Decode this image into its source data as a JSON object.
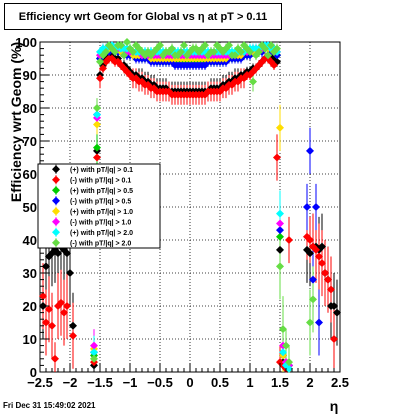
{
  "chart_data": {
    "type": "scatter",
    "title": "Efficiency wrt Geom for Global vs    η  at pT > 0.11",
    "xlabel": "η",
    "ylabel": "Efficiency wrt Geom (%)",
    "xlim": [
      -2.5,
      2.5
    ],
    "ylim": [
      0,
      100
    ],
    "x_tick_labels": [
      "−2.5",
      "−2",
      "−1.5",
      "−1",
      "−0.5",
      "0",
      "0.5",
      "1",
      "1.5",
      "2",
      "2.5"
    ],
    "y_tick_labels": [
      "0",
      "10",
      "20",
      "30",
      "40",
      "50",
      "60",
      "70",
      "80",
      "90",
      "100"
    ],
    "grid": true,
    "legend_position": "left-middle",
    "series": [
      {
        "name": "(+) with pT/|q| > 0.1",
        "color": "#000000",
        "x": [
          -2.45,
          -2.4,
          -2.35,
          -2.3,
          -2.25,
          -2.2,
          -2.15,
          -2.1,
          -2.05,
          -2.0,
          -1.95,
          -1.6,
          -1.55,
          -1.5,
          -1.45,
          -1.4,
          -1.35,
          -1.3,
          -1.25,
          -1.2,
          -1.15,
          -1.1,
          -1.05,
          -1.0,
          -0.95,
          -0.9,
          -0.85,
          -0.8,
          -0.75,
          -0.7,
          -0.65,
          -0.6,
          -0.55,
          -0.5,
          -0.45,
          -0.4,
          -0.35,
          -0.3,
          -0.25,
          -0.2,
          -0.15,
          -0.1,
          -0.05,
          0.0,
          0.05,
          0.1,
          0.15,
          0.2,
          0.25,
          0.3,
          0.35,
          0.4,
          0.45,
          0.5,
          0.55,
          0.6,
          0.65,
          0.7,
          0.75,
          0.8,
          0.85,
          0.9,
          0.95,
          1.0,
          1.05,
          1.1,
          1.15,
          1.2,
          1.25,
          1.3,
          1.35,
          1.4,
          1.45,
          1.5,
          1.55,
          1.6,
          1.65,
          1.95,
          2.0,
          2.05,
          2.1,
          2.15,
          2.2,
          2.25,
          2.3,
          2.35,
          2.4,
          2.45
        ],
        "y": [
          20,
          32,
          35,
          36,
          37,
          36,
          38,
          37,
          36,
          30,
          14,
          2,
          67,
          90,
          93,
          95,
          96,
          96,
          95,
          95,
          93,
          93,
          92,
          91,
          90,
          90,
          89,
          89,
          88,
          88,
          87,
          87,
          86,
          86,
          86,
          86,
          85,
          85,
          85,
          85,
          85,
          85,
          85,
          85,
          85,
          85,
          85,
          85,
          85,
          85,
          86,
          86,
          86,
          86,
          87,
          87,
          88,
          88,
          89,
          89,
          90,
          90,
          91,
          91,
          92,
          92,
          93,
          94,
          95,
          96,
          96,
          95,
          94,
          37,
          3,
          2,
          2,
          37,
          36,
          38,
          38,
          37,
          38,
          30,
          28,
          20,
          20,
          18
        ]
      },
      {
        "name": "(-) with pT/|q| > 0.1",
        "color": "#ff0000",
        "x": [
          -2.45,
          -2.4,
          -2.35,
          -2.3,
          -2.25,
          -2.2,
          -2.15,
          -2.1,
          -2.05,
          -1.95,
          -1.6,
          -1.55,
          -1.5,
          -1.45,
          -1.4,
          -1.35,
          -1.3,
          -1.25,
          -1.2,
          -1.15,
          -1.1,
          -1.05,
          -1.0,
          -0.95,
          -0.9,
          -0.85,
          -0.8,
          -0.75,
          -0.7,
          -0.65,
          -0.6,
          -0.55,
          -0.5,
          -0.45,
          -0.4,
          -0.35,
          -0.3,
          -0.25,
          -0.2,
          -0.15,
          -0.1,
          -0.05,
          0.0,
          0.05,
          0.1,
          0.15,
          0.2,
          0.25,
          0.3,
          0.35,
          0.4,
          0.45,
          0.5,
          0.55,
          0.6,
          0.65,
          0.7,
          0.75,
          0.8,
          0.85,
          0.9,
          0.95,
          1.0,
          1.05,
          1.1,
          1.15,
          1.2,
          1.25,
          1.3,
          1.35,
          1.4,
          1.45,
          1.5,
          1.55,
          1.6,
          1.65,
          1.95,
          2.0,
          2.05,
          2.1,
          2.15,
          2.2,
          2.25,
          2.3,
          2.35,
          2.4
        ],
        "y": [
          23,
          15,
          19,
          14,
          4,
          20,
          21,
          18,
          20,
          11,
          3,
          65,
          89,
          92,
          94,
          95,
          95,
          94,
          94,
          93,
          92,
          91,
          90,
          89,
          89,
          88,
          88,
          87,
          87,
          86,
          86,
          85,
          85,
          85,
          85,
          85,
          84,
          84,
          84,
          84,
          84,
          84,
          84,
          84,
          84,
          84,
          84,
          84,
          85,
          85,
          85,
          85,
          85,
          86,
          86,
          87,
          87,
          88,
          88,
          89,
          89,
          90,
          90,
          91,
          92,
          93,
          94,
          95,
          95,
          94,
          93,
          65,
          3,
          2,
          1,
          40,
          41,
          40,
          38,
          37,
          35,
          33,
          30,
          28,
          25,
          10
        ]
      },
      {
        "name": "(+) with pT/|q| > 0.5",
        "color": "#00cc00",
        "x": [
          -1.6,
          -1.55,
          -1.5,
          -1.45,
          -1.4,
          -1.35,
          -1.3,
          -1.25,
          -1.2,
          -1.15,
          -1.1,
          -1.05,
          -1.0,
          -0.95,
          -0.9,
          -0.85,
          -0.8,
          -0.75,
          -0.7,
          -0.65,
          -0.6,
          -0.55,
          -0.5,
          -0.45,
          -0.4,
          -0.35,
          -0.3,
          -0.25,
          -0.2,
          -0.15,
          -0.1,
          -0.05,
          0.0,
          0.05,
          0.1,
          0.15,
          0.2,
          0.25,
          0.3,
          0.35,
          0.4,
          0.45,
          0.5,
          0.55,
          0.6,
          0.65,
          0.7,
          0.75,
          0.8,
          0.85,
          0.9,
          0.95,
          1.0,
          1.05,
          1.1,
          1.15,
          1.2,
          1.25,
          1.3,
          1.35,
          1.4,
          1.45,
          1.5,
          1.55,
          1.6,
          1.65
        ],
        "y": [
          5,
          68,
          95,
          97,
          97,
          98,
          98,
          98,
          97,
          97,
          97,
          97,
          96,
          96,
          96,
          96,
          95,
          95,
          95,
          95,
          95,
          94,
          94,
          94,
          94,
          94,
          94,
          94,
          94,
          94,
          94,
          94,
          94,
          94,
          94,
          94,
          94,
          94,
          94,
          94,
          94,
          94,
          94,
          94,
          95,
          95,
          95,
          95,
          95,
          96,
          96,
          96,
          97,
          97,
          97,
          97,
          98,
          98,
          98,
          97,
          97,
          96,
          41,
          5,
          3,
          2
        ]
      },
      {
        "name": "(-) with pT/|q| > 0.5",
        "color": "#0000ff",
        "x": [
          -1.6,
          -1.55,
          -1.5,
          -1.45,
          -1.4,
          -1.35,
          -1.3,
          -1.25,
          -1.2,
          -1.15,
          -1.1,
          -1.05,
          -1.0,
          -0.95,
          -0.9,
          -0.85,
          -0.8,
          -0.75,
          -0.7,
          -0.65,
          -0.6,
          -0.55,
          -0.5,
          -0.45,
          -0.4,
          -0.35,
          -0.3,
          -0.25,
          -0.2,
          -0.15,
          -0.1,
          -0.05,
          0.0,
          0.05,
          0.1,
          0.15,
          0.2,
          0.25,
          0.3,
          0.35,
          0.4,
          0.45,
          0.5,
          0.55,
          0.6,
          0.65,
          0.7,
          0.75,
          0.8,
          0.85,
          0.9,
          0.95,
          1.0,
          1.05,
          1.1,
          1.15,
          1.2,
          1.25,
          1.3,
          1.35,
          1.4,
          1.45,
          1.5,
          1.55,
          1.6,
          1.65,
          1.95,
          2.0,
          2.05,
          2.1,
          2.15
        ],
        "y": [
          6,
          78,
          95,
          97,
          97,
          97,
          98,
          97,
          97,
          97,
          96,
          96,
          96,
          96,
          95,
          95,
          95,
          95,
          95,
          94,
          94,
          94,
          94,
          94,
          94,
          94,
          94,
          93,
          93,
          93,
          93,
          93,
          93,
          93,
          93,
          93,
          93,
          93,
          94,
          94,
          94,
          94,
          94,
          94,
          94,
          95,
          95,
          95,
          95,
          95,
          96,
          96,
          96,
          97,
          97,
          97,
          97,
          98,
          98,
          97,
          97,
          96,
          43,
          5,
          2,
          2,
          50,
          67,
          28,
          50,
          15
        ]
      },
      {
        "name": "(+) with pT/|q| > 1.0",
        "color": "#ffdd00",
        "x": [
          -1.6,
          -1.55,
          -1.5,
          -1.45,
          -1.4,
          -1.35,
          -1.3,
          -1.25,
          -1.2,
          -1.15,
          -1.1,
          -1.05,
          -1.0,
          -0.95,
          -0.9,
          -0.85,
          -0.8,
          -0.75,
          -0.7,
          -0.65,
          -0.6,
          -0.55,
          -0.5,
          -0.45,
          -0.4,
          -0.35,
          -0.3,
          -0.25,
          -0.2,
          -0.15,
          -0.1,
          -0.05,
          0.0,
          0.05,
          0.1,
          0.15,
          0.2,
          0.25,
          0.3,
          0.35,
          0.4,
          0.45,
          0.5,
          0.55,
          0.6,
          0.65,
          0.7,
          0.75,
          0.8,
          0.85,
          0.9,
          0.95,
          1.0,
          1.05,
          1.1,
          1.15,
          1.2,
          1.25,
          1.3,
          1.35,
          1.4,
          1.45,
          1.5,
          1.55,
          1.6,
          1.65
        ],
        "y": [
          7,
          75,
          96,
          97,
          98,
          98,
          98,
          98,
          98,
          97,
          97,
          97,
          97,
          96,
          96,
          96,
          96,
          96,
          96,
          95,
          95,
          95,
          95,
          95,
          95,
          95,
          95,
          95,
          95,
          95,
          95,
          95,
          95,
          95,
          95,
          95,
          95,
          95,
          95,
          95,
          95,
          95,
          95,
          95,
          95,
          96,
          96,
          96,
          96,
          96,
          97,
          97,
          97,
          97,
          98,
          98,
          98,
          98,
          98,
          98,
          97,
          97,
          74,
          5,
          3,
          1
        ]
      },
      {
        "name": "(-) with pT/|q| > 1.0",
        "color": "#ff00ff",
        "x": [
          -1.6,
          -1.55,
          -1.5,
          -1.45,
          -1.4,
          -1.35,
          -1.3,
          -1.25,
          -1.2,
          -1.15,
          -1.1,
          -1.05,
          -1.0,
          -0.95,
          -0.9,
          -0.85,
          -0.8,
          -0.75,
          -0.7,
          -0.65,
          -0.6,
          -0.55,
          -0.5,
          -0.45,
          -0.4,
          -0.35,
          -0.3,
          -0.25,
          -0.2,
          -0.15,
          -0.1,
          -0.05,
          0.0,
          0.05,
          0.1,
          0.15,
          0.2,
          0.25,
          0.3,
          0.35,
          0.4,
          0.45,
          0.5,
          0.55,
          0.6,
          0.65,
          0.7,
          0.75,
          0.8,
          0.85,
          0.9,
          0.95,
          1.0,
          1.05,
          1.1,
          1.15,
          1.2,
          1.25,
          1.3,
          1.35,
          1.4,
          1.45,
          1.5,
          1.55,
          1.6,
          1.65
        ],
        "y": [
          8,
          77,
          96,
          98,
          98,
          99,
          99,
          98,
          98,
          98,
          98,
          97,
          97,
          97,
          97,
          97,
          96,
          96,
          96,
          96,
          96,
          96,
          96,
          96,
          96,
          96,
          96,
          96,
          96,
          96,
          96,
          96,
          96,
          96,
          96,
          96,
          96,
          96,
          96,
          96,
          96,
          96,
          96,
          96,
          96,
          96,
          96,
          96,
          97,
          97,
          97,
          97,
          97,
          98,
          98,
          98,
          98,
          99,
          99,
          98,
          98,
          97,
          45,
          8,
          3,
          2
        ]
      },
      {
        "name": "(+) with pT/|q| > 2.0",
        "color": "#00ffff",
        "x": [
          -1.6,
          -1.55,
          -1.5,
          -1.45,
          -1.4,
          -1.35,
          -1.3,
          -1.25,
          -1.2,
          -1.15,
          -1.1,
          -1.05,
          -1.0,
          -0.95,
          -0.9,
          -0.85,
          -0.8,
          -0.75,
          -0.7,
          -0.65,
          -0.6,
          -0.55,
          -0.5,
          -0.45,
          -0.4,
          -0.35,
          -0.3,
          -0.25,
          -0.2,
          -0.15,
          -0.1,
          -0.05,
          0.0,
          0.05,
          0.1,
          0.15,
          0.2,
          0.25,
          0.3,
          0.35,
          0.4,
          0.45,
          0.5,
          0.55,
          0.6,
          0.65,
          0.7,
          0.75,
          0.8,
          0.85,
          0.9,
          0.95,
          1.0,
          1.05,
          1.1,
          1.15,
          1.2,
          1.25,
          1.3,
          1.35,
          1.4,
          1.45,
          1.5,
          1.55,
          1.6,
          1.65
        ],
        "y": [
          6,
          78,
          97,
          98,
          98,
          99,
          99,
          98,
          99,
          98,
          98,
          98,
          98,
          97,
          97,
          97,
          97,
          97,
          97,
          97,
          97,
          97,
          97,
          97,
          97,
          97,
          97,
          97,
          97,
          97,
          97,
          97,
          97,
          97,
          97,
          97,
          97,
          97,
          97,
          97,
          97,
          97,
          97,
          97,
          97,
          97,
          97,
          97,
          97,
          97,
          97,
          98,
          98,
          98,
          98,
          98,
          99,
          99,
          99,
          98,
          98,
          97,
          48,
          6,
          2,
          1
        ]
      },
      {
        "name": "(-) with pT/|q| > 2.0",
        "color": "#66dd44",
        "x": [
          -1.6,
          -1.55,
          -1.5,
          -1.45,
          -1.4,
          -1.35,
          -1.3,
          -1.25,
          -1.2,
          -1.15,
          -1.1,
          -1.05,
          -1.0,
          -0.95,
          -0.9,
          -0.85,
          -0.8,
          -0.75,
          -0.7,
          -0.65,
          -0.6,
          -0.55,
          -0.5,
          -0.45,
          -0.4,
          -0.35,
          -0.3,
          -0.25,
          -0.2,
          -0.15,
          -0.1,
          -0.05,
          0.0,
          0.05,
          0.1,
          0.15,
          0.2,
          0.25,
          0.3,
          0.35,
          0.4,
          0.45,
          0.5,
          0.55,
          0.6,
          0.65,
          0.7,
          0.75,
          0.8,
          0.85,
          0.9,
          0.95,
          1.0,
          1.05,
          1.1,
          1.15,
          1.2,
          1.25,
          1.3,
          1.35,
          1.4,
          1.45,
          1.5,
          1.55,
          1.6,
          1.65,
          2.0,
          2.05
        ],
        "y": [
          4,
          80,
          94,
          96,
          97,
          99,
          98,
          97,
          99,
          99,
          96,
          100,
          98,
          97,
          99,
          98,
          97,
          96,
          97,
          96,
          97,
          98,
          99,
          96,
          97,
          97,
          98,
          96,
          96,
          97,
          99,
          96,
          97,
          98,
          98,
          97,
          98,
          99,
          96,
          97,
          97,
          99,
          98,
          97,
          98,
          99,
          96,
          96,
          98,
          97,
          99,
          98,
          97,
          88,
          96,
          97,
          99,
          98,
          96,
          99,
          97,
          98,
          32,
          13,
          8,
          3,
          15,
          22
        ]
      }
    ],
    "footer_timestamp": "Fri Dec 31 15:49:02 2021"
  }
}
